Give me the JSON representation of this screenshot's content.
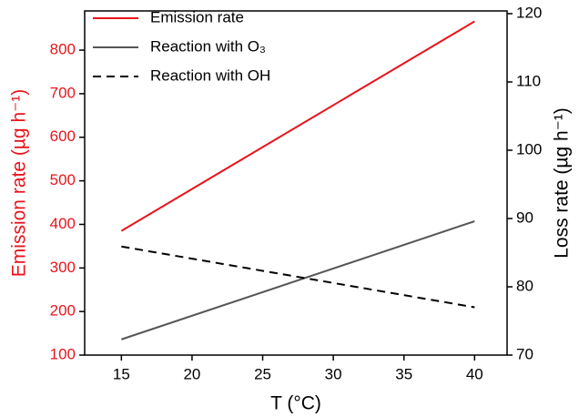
{
  "chart_data": {
    "type": "line",
    "x_label": "T (°C)",
    "y_label": "Emission rate (µg h⁻¹)",
    "y2_label": "Loss rate (µg h⁻¹)",
    "x": [
      15,
      40
    ],
    "xlim": [
      12.4,
      42.3
    ],
    "xticks": [
      15,
      20,
      25,
      30,
      35,
      40
    ],
    "ylim": [
      100,
      890
    ],
    "yticks": [
      100,
      200,
      300,
      400,
      500,
      600,
      700,
      800
    ],
    "y2lim": [
      70,
      120.4
    ],
    "y2ticks": [
      70,
      80,
      90,
      100,
      110,
      120
    ],
    "y_color": "#e8141c",
    "legend": "upper left",
    "series": [
      {
        "name": "Emission rate",
        "color": "#e8141c",
        "linestyle": "solid",
        "values": [
          385,
          866
        ]
      },
      {
        "name": "Reaction with O₃",
        "color": "#555555",
        "linestyle": "solid",
        "axis": "y2",
        "values": [
          72.3,
          89.6
        ]
      },
      {
        "name": "Reaction with OH",
        "color": "#000000",
        "linestyle": "dashed",
        "axis": "y2",
        "values": [
          85.9,
          77
        ]
      }
    ]
  }
}
